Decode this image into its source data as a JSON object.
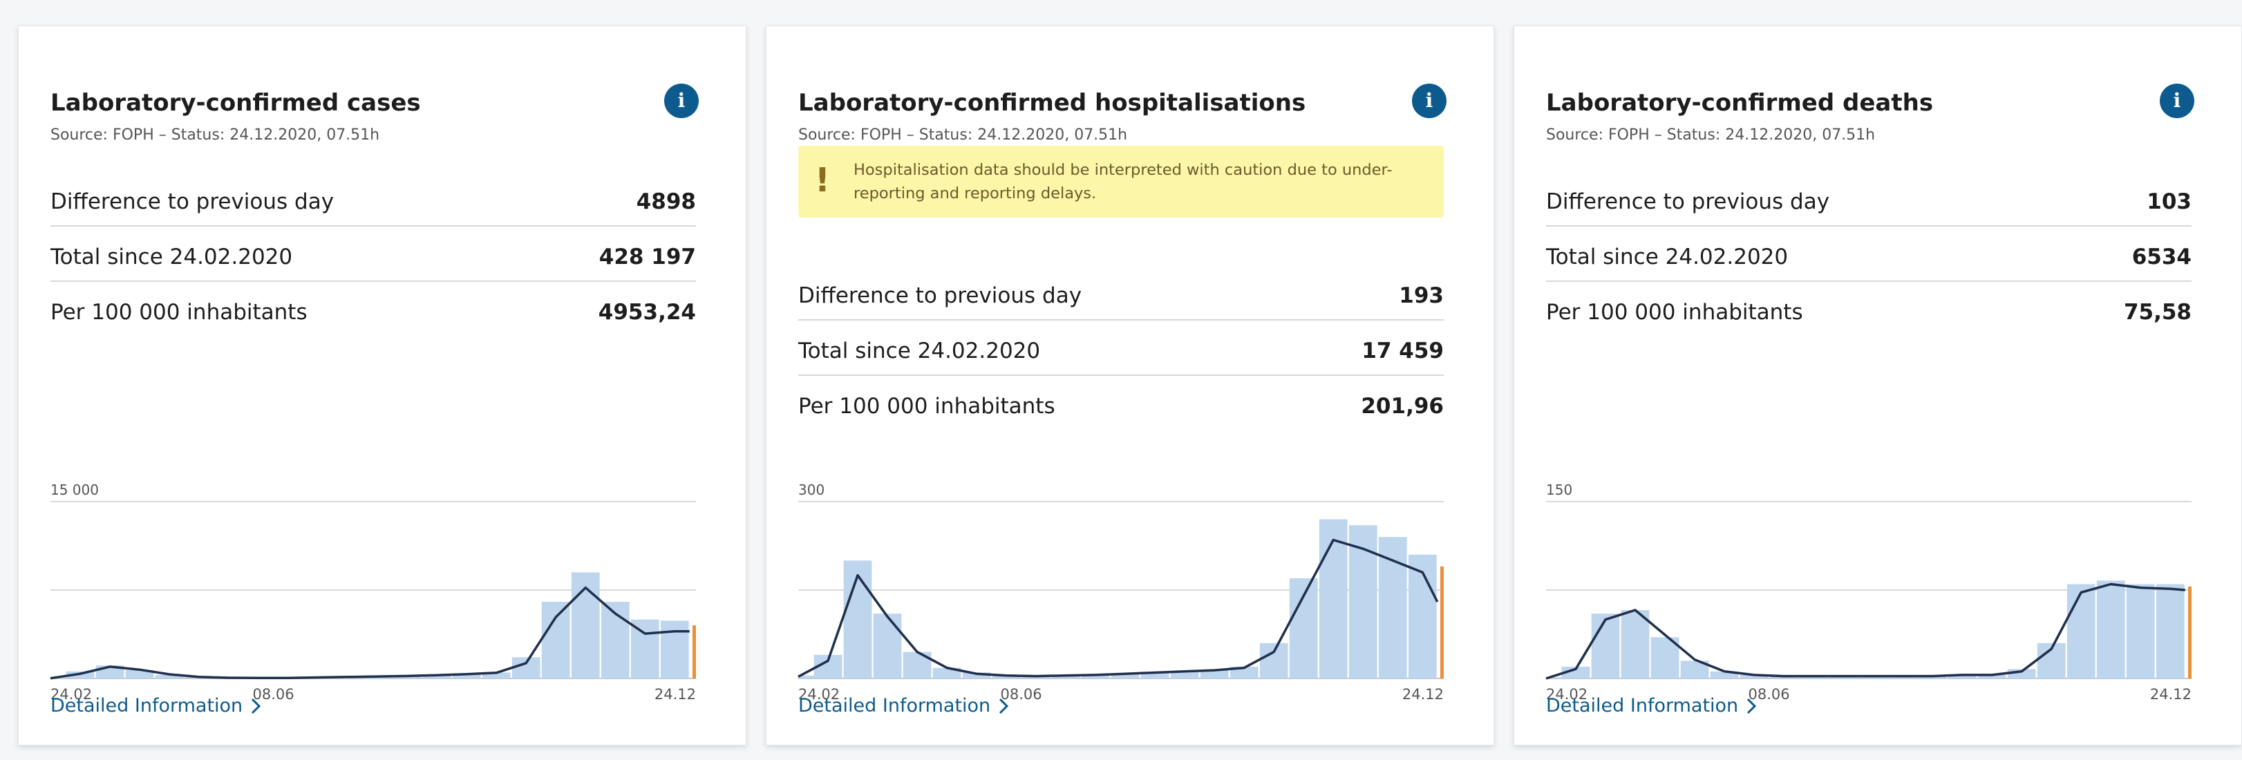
{
  "colors": {
    "accent": "#0c5a8e",
    "bar": "#bed5ee",
    "line": "#1f2f4c",
    "recent": "#e8913a",
    "grid": "#d9d9d9",
    "warning_bg": "#fbf6a8"
  },
  "cards": [
    {
      "title": "Laboratory-confirmed cases",
      "source": "Source: FOPH – Status: 24.12.2020, 07.51h",
      "info_icon": "i",
      "rows": [
        {
          "label": "Difference to previous day",
          "value": "4898"
        },
        {
          "label": "Total since 24.02.2020",
          "value": "428 197"
        },
        {
          "label": "Per 100 000 inhabitants",
          "value": "4953,24"
        }
      ],
      "detail_link": "Detailed Information"
    },
    {
      "title": "Laboratory-confirmed hospitalisations",
      "source": "Source: FOPH – Status: 24.12.2020, 07.51h",
      "info_icon": "i",
      "warning": {
        "icon": "!",
        "text": "Hospitalisation data should be interpreted with caution due to under-reporting and reporting delays."
      },
      "rows": [
        {
          "label": "Difference to previous day",
          "value": "193"
        },
        {
          "label": "Total since 24.02.2020",
          "value": "17 459"
        },
        {
          "label": "Per 100 000 inhabitants",
          "value": "201,96"
        }
      ],
      "detail_link": "Detailed Information"
    },
    {
      "title": "Laboratory-confirmed deaths",
      "source": "Source: FOPH – Status: 24.12.2020, 07.51h",
      "info_icon": "i",
      "rows": [
        {
          "label": "Difference to previous day",
          "value": "103"
        },
        {
          "label": "Total since 24.02.2020",
          "value": "6534"
        },
        {
          "label": "Per 100 000 inhabitants",
          "value": "75,58"
        }
      ],
      "detail_link": "Detailed Information"
    }
  ],
  "chart_data": [
    {
      "type": "area",
      "title": "",
      "ylim": [
        0,
        15000
      ],
      "y_tick_label": "15 000",
      "x_tick_labels": [
        "24.02",
        "08.06",
        "24.12"
      ],
      "grid": true,
      "series": [
        {
          "kind": "bars",
          "dates": [
            "24.02",
            "09.03",
            "23.03",
            "06.04",
            "20.04",
            "04.05",
            "18.05",
            "01.06",
            "15.06",
            "29.06",
            "13.07",
            "27.07",
            "10.08",
            "24.08",
            "07.09",
            "21.09",
            "05.10",
            "19.10",
            "02.11",
            "16.11",
            "30.11",
            "14.12",
            "24.12"
          ],
          "values": [
            80,
            600,
            1100,
            700,
            300,
            120,
            60,
            40,
            40,
            100,
            150,
            180,
            230,
            300,
            380,
            500,
            1800,
            6500,
            9000,
            6500,
            5000,
            4900,
            4500
          ]
        },
        {
          "kind": "line",
          "dates": [
            "24.02",
            "09.03",
            "23.03",
            "06.04",
            "20.04",
            "04.05",
            "18.05",
            "01.06",
            "15.06",
            "29.06",
            "13.07",
            "27.07",
            "10.08",
            "24.08",
            "07.09",
            "21.09",
            "05.10",
            "19.10",
            "02.11",
            "16.11",
            "30.11",
            "14.12",
            "21.12"
          ],
          "values": [
            20,
            400,
            1000,
            750,
            350,
            130,
            60,
            40,
            40,
            90,
            130,
            170,
            210,
            280,
            370,
            480,
            1300,
            5200,
            7700,
            5500,
            3800,
            4000,
            4000
          ]
        }
      ]
    },
    {
      "type": "area",
      "title": "",
      "ylim": [
        0,
        300
      ],
      "y_tick_label": "300",
      "x_tick_labels": [
        "24.02",
        "08.06",
        "24.12"
      ],
      "grid": true,
      "series": [
        {
          "kind": "bars",
          "dates": [
            "24.02",
            "09.03",
            "23.03",
            "06.04",
            "20.04",
            "04.05",
            "18.05",
            "01.06",
            "15.06",
            "29.06",
            "13.07",
            "27.07",
            "10.08",
            "24.08",
            "07.09",
            "21.09",
            "05.10",
            "19.10",
            "02.11",
            "16.11",
            "30.11",
            "14.12",
            "24.12"
          ],
          "values": [
            5,
            40,
            200,
            110,
            45,
            18,
            10,
            5,
            4,
            5,
            6,
            8,
            10,
            12,
            15,
            20,
            60,
            170,
            270,
            260,
            240,
            210,
            190
          ]
        },
        {
          "kind": "line",
          "dates": [
            "24.02",
            "09.03",
            "23.03",
            "06.04",
            "20.04",
            "04.05",
            "18.05",
            "01.06",
            "15.06",
            "29.06",
            "13.07",
            "27.07",
            "10.08",
            "24.08",
            "07.09",
            "21.09",
            "05.10",
            "19.10",
            "02.11",
            "16.11",
            "30.11",
            "14.12",
            "21.12"
          ],
          "values": [
            3,
            30,
            175,
            105,
            45,
            18,
            8,
            5,
            4,
            5,
            6,
            8,
            10,
            12,
            14,
            18,
            45,
            140,
            235,
            220,
            200,
            180,
            130
          ]
        }
      ]
    },
    {
      "type": "area",
      "title": "",
      "ylim": [
        0,
        150
      ],
      "y_tick_label": "150",
      "x_tick_labels": [
        "24.02",
        "08.06",
        "24.12"
      ],
      "grid": true,
      "series": [
        {
          "kind": "bars",
          "dates": [
            "24.02",
            "09.03",
            "23.03",
            "06.04",
            "20.04",
            "04.05",
            "18.05",
            "01.06",
            "15.06",
            "29.06",
            "13.07",
            "27.07",
            "10.08",
            "24.08",
            "07.09",
            "21.09",
            "05.10",
            "19.10",
            "02.11",
            "16.11",
            "30.11",
            "14.12",
            "24.12"
          ],
          "values": [
            1,
            10,
            55,
            58,
            35,
            15,
            6,
            3,
            2,
            2,
            2,
            2,
            2,
            3,
            3,
            3,
            8,
            30,
            80,
            83,
            80,
            80,
            78
          ]
        },
        {
          "kind": "line",
          "dates": [
            "24.02",
            "09.03",
            "23.03",
            "06.04",
            "20.04",
            "04.05",
            "18.05",
            "01.06",
            "15.06",
            "29.06",
            "13.07",
            "27.07",
            "10.08",
            "24.08",
            "07.09",
            "21.09",
            "05.10",
            "19.10",
            "02.11",
            "16.11",
            "30.11",
            "14.12",
            "21.12"
          ],
          "values": [
            0,
            8,
            50,
            58,
            37,
            16,
            6,
            3,
            2,
            2,
            2,
            2,
            2,
            2,
            3,
            3,
            6,
            25,
            73,
            80,
            77,
            76,
            75
          ]
        }
      ]
    }
  ]
}
